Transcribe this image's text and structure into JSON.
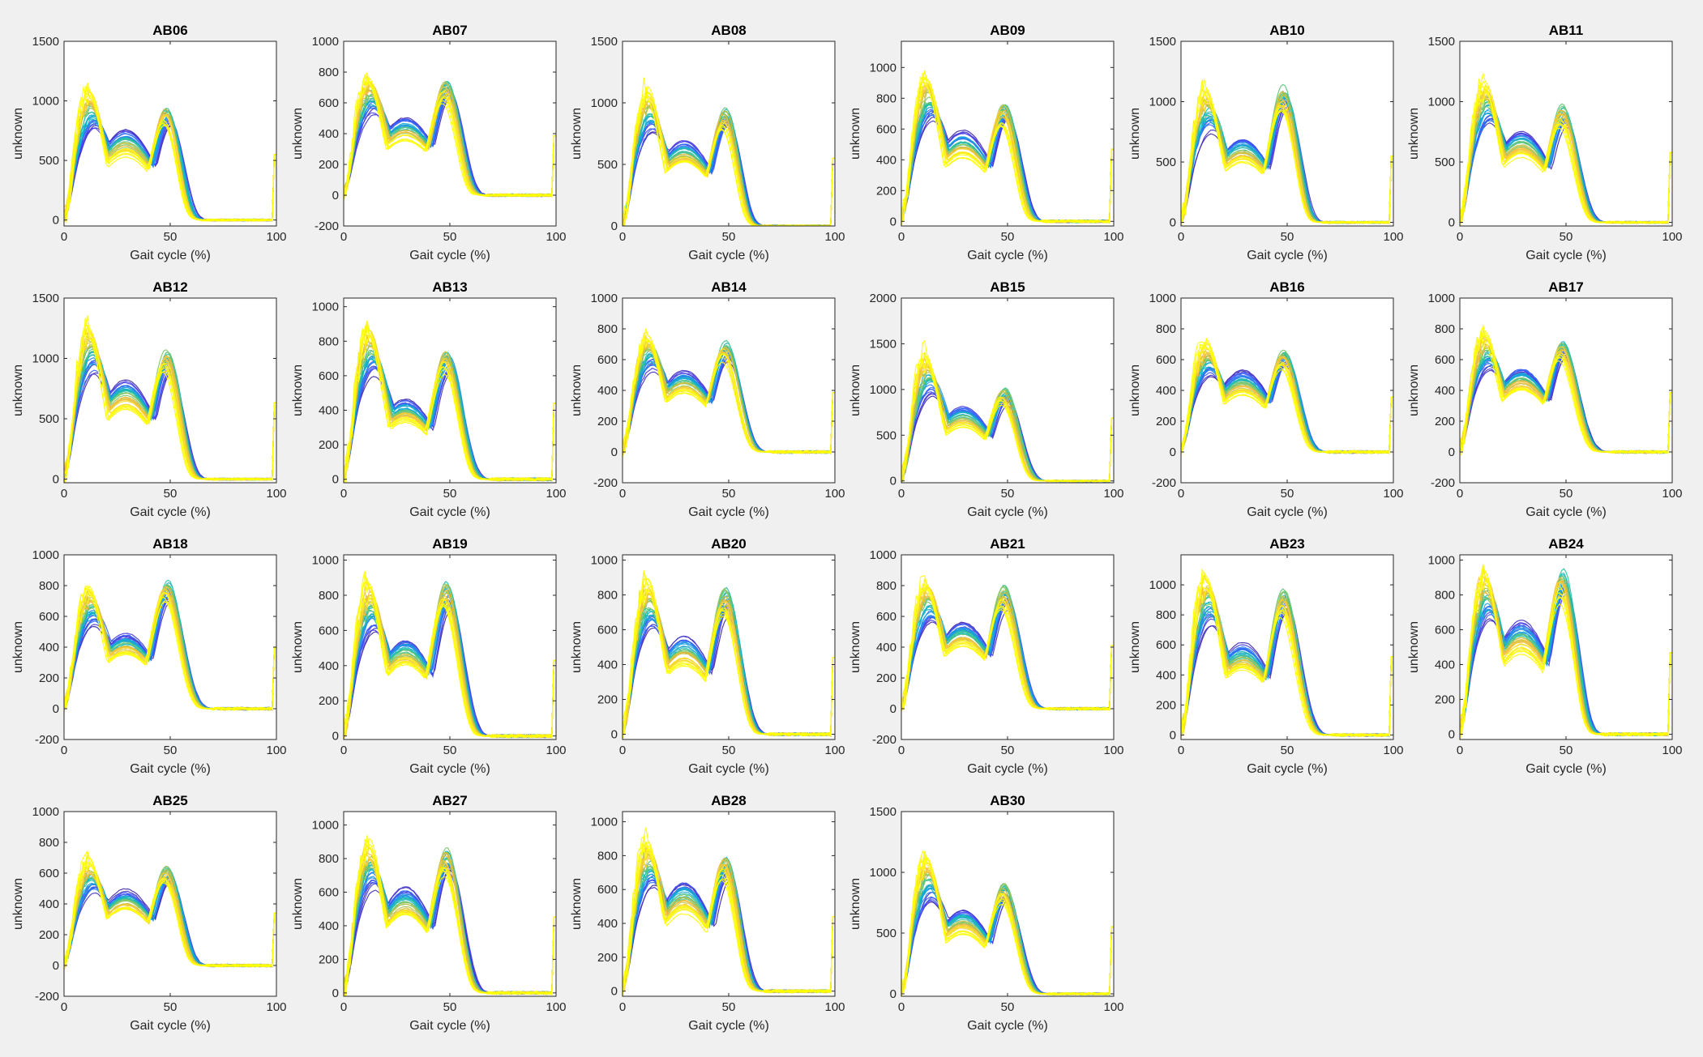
{
  "figure": {
    "background": "#f0f0f0",
    "plot_background": "#ffffff",
    "colormap": [
      "#3e26a8",
      "#4743f5",
      "#2d6ffd",
      "#1e9be0",
      "#0ab2c8",
      "#2bc29f",
      "#7cc76a",
      "#c8c03e",
      "#fbbc3e",
      "#f6d82d",
      "#f9fb14",
      "#ffff00"
    ]
  },
  "chart_data": [
    {
      "type": "line",
      "title": "AB06",
      "xlabel": "Gait cycle (%)",
      "ylabel": "unknown",
      "xlim": [
        0,
        100
      ],
      "ylim": [
        -50,
        1500
      ],
      "xticks": [
        0,
        50,
        100
      ],
      "yticks": [
        0,
        500,
        1000,
        1500
      ],
      "p1": 1000,
      "v": 650,
      "p2": 900,
      "toe_off": 57
    },
    {
      "type": "line",
      "title": "AB07",
      "xlabel": "Gait cycle (%)",
      "ylabel": "unknown",
      "xlim": [
        0,
        100
      ],
      "ylim": [
        -200,
        1000
      ],
      "xticks": [
        0,
        50,
        100
      ],
      "yticks": [
        -200,
        0,
        200,
        400,
        600,
        800,
        1000
      ],
      "p1": 700,
      "v": 430,
      "p2": 700,
      "toe_off": 58
    },
    {
      "type": "line",
      "title": "AB08",
      "xlabel": "Gait cycle (%)",
      "ylabel": "unknown",
      "xlim": [
        0,
        100
      ],
      "ylim": [
        0,
        1500
      ],
      "xticks": [
        0,
        50,
        100
      ],
      "yticks": [
        0,
        500,
        1000,
        1500
      ],
      "p1": 1000,
      "v": 600,
      "p2": 900,
      "toe_off": 57
    },
    {
      "type": "line",
      "title": "AB09",
      "xlabel": "Gait cycle (%)",
      "ylabel": "unknown",
      "xlim": [
        0,
        100
      ],
      "ylim": [
        -30,
        1170
      ],
      "xticks": [
        0,
        50,
        100
      ],
      "yticks": [
        0,
        200,
        400,
        600,
        800,
        1000
      ],
      "p1": 850,
      "v": 500,
      "p2": 720,
      "toe_off": 58
    },
    {
      "type": "line",
      "title": "AB10",
      "xlabel": "Gait cycle (%)",
      "ylabel": "unknown",
      "xlim": [
        0,
        100
      ],
      "ylim": [
        -30,
        1500
      ],
      "xticks": [
        0,
        50,
        100
      ],
      "yticks": [
        0,
        500,
        1000,
        1500
      ],
      "p1": 1000,
      "v": 600,
      "p2": 1050,
      "toe_off": 58
    },
    {
      "type": "line",
      "title": "AB11",
      "xlabel": "Gait cycle (%)",
      "ylabel": "unknown",
      "xlim": [
        0,
        100
      ],
      "ylim": [
        -30,
        1500
      ],
      "xticks": [
        0,
        50,
        100
      ],
      "yticks": [
        0,
        500,
        1000,
        1500
      ],
      "p1": 1050,
      "v": 650,
      "p2": 900,
      "toe_off": 60
    },
    {
      "type": "line",
      "title": "AB12",
      "xlabel": "Gait cycle (%)",
      "ylabel": "unknown",
      "xlim": [
        0,
        100
      ],
      "ylim": [
        -30,
        1500
      ],
      "xticks": [
        0,
        50,
        100
      ],
      "yticks": [
        0,
        500,
        1000,
        1500
      ],
      "p1": 1150,
      "v": 700,
      "p2": 1000,
      "toe_off": 58
    },
    {
      "type": "line",
      "title": "AB13",
      "xlabel": "Gait cycle (%)",
      "ylabel": "unknown",
      "xlim": [
        0,
        100
      ],
      "ylim": [
        -20,
        1050
      ],
      "xticks": [
        0,
        50,
        100
      ],
      "yticks": [
        0,
        200,
        400,
        600,
        800,
        1000
      ],
      "p1": 800,
      "v": 400,
      "p2": 700,
      "toe_off": 60
    },
    {
      "type": "line",
      "title": "AB14",
      "xlabel": "Gait cycle (%)",
      "ylabel": "unknown",
      "xlim": [
        0,
        100
      ],
      "ylim": [
        -200,
        1000
      ],
      "xticks": [
        0,
        50,
        100
      ],
      "yticks": [
        -200,
        0,
        200,
        400,
        600,
        800,
        1000
      ],
      "p1": 700,
      "v": 450,
      "p2": 680,
      "toe_off": 60
    },
    {
      "type": "line",
      "title": "AB15",
      "xlabel": "Gait cycle (%)",
      "ylabel": "unknown",
      "xlim": [
        0,
        100
      ],
      "ylim": [
        -20,
        2000
      ],
      "xticks": [
        0,
        50,
        100
      ],
      "yticks": [
        0,
        500,
        1000,
        1500,
        2000
      ],
      "p1": 1250,
      "v": 700,
      "p2": 950,
      "toe_off": 60
    },
    {
      "type": "line",
      "title": "AB16",
      "xlabel": "Gait cycle (%)",
      "ylabel": "unknown",
      "xlim": [
        0,
        100
      ],
      "ylim": [
        -200,
        1000
      ],
      "xticks": [
        0,
        50,
        100
      ],
      "yticks": [
        -200,
        0,
        200,
        400,
        600,
        800,
        1000
      ],
      "p1": 650,
      "v": 450,
      "p2": 620,
      "toe_off": 60
    },
    {
      "type": "line",
      "title": "AB17",
      "xlabel": "Gait cycle (%)",
      "ylabel": "unknown",
      "xlim": [
        0,
        100
      ],
      "ylim": [
        -200,
        1000
      ],
      "xticks": [
        0,
        50,
        100
      ],
      "yticks": [
        -200,
        0,
        200,
        400,
        600,
        800,
        1000
      ],
      "p1": 700,
      "v": 470,
      "p2": 680,
      "toe_off": 62
    },
    {
      "type": "line",
      "title": "AB18",
      "xlabel": "Gait cycle (%)",
      "ylabel": "unknown",
      "xlim": [
        0,
        100
      ],
      "ylim": [
        -200,
        1000
      ],
      "xticks": [
        0,
        50,
        100
      ],
      "yticks": [
        -200,
        0,
        200,
        400,
        600,
        800,
        1000
      ],
      "p1": 720,
      "v": 420,
      "p2": 780,
      "toe_off": 62
    },
    {
      "type": "line",
      "title": "AB19",
      "xlabel": "Gait cycle (%)",
      "ylabel": "unknown",
      "xlim": [
        0,
        100
      ],
      "ylim": [
        -20,
        1030
      ],
      "xticks": [
        0,
        50,
        100
      ],
      "yticks": [
        0,
        200,
        400,
        600,
        800,
        1000
      ],
      "p1": 780,
      "v": 480,
      "p2": 820,
      "toe_off": 60
    },
    {
      "type": "line",
      "title": "AB20",
      "xlabel": "Gait cycle (%)",
      "ylabel": "unknown",
      "xlim": [
        0,
        100
      ],
      "ylim": [
        -30,
        1030
      ],
      "xticks": [
        0,
        50,
        100
      ],
      "yticks": [
        0,
        200,
        400,
        600,
        800,
        1000
      ],
      "p1": 800,
      "v": 480,
      "p2": 780,
      "toe_off": 60
    },
    {
      "type": "line",
      "title": "AB21",
      "xlabel": "Gait cycle (%)",
      "ylabel": "unknown",
      "xlim": [
        0,
        100
      ],
      "ylim": [
        -200,
        1000
      ],
      "xticks": [
        0,
        50,
        100
      ],
      "yticks": [
        -200,
        0,
        200,
        400,
        600,
        800,
        1000
      ],
      "p1": 750,
      "v": 480,
      "p2": 740,
      "toe_off": 60
    },
    {
      "type": "line",
      "title": "AB23",
      "xlabel": "Gait cycle (%)",
      "ylabel": "unknown",
      "xlim": [
        0,
        100
      ],
      "ylim": [
        -30,
        1200
      ],
      "xticks": [
        0,
        50,
        100
      ],
      "yticks": [
        0,
        200,
        400,
        600,
        800,
        1000
      ],
      "p1": 950,
      "v": 520,
      "p2": 900,
      "toe_off": 62
    },
    {
      "type": "line",
      "title": "AB24",
      "xlabel": "Gait cycle (%)",
      "ylabel": "unknown",
      "xlim": [
        0,
        100
      ],
      "ylim": [
        -30,
        1030
      ],
      "xticks": [
        0,
        50,
        100
      ],
      "yticks": [
        0,
        200,
        400,
        600,
        800,
        1000
      ],
      "p1": 850,
      "v": 560,
      "p2": 880,
      "toe_off": 58
    },
    {
      "type": "line",
      "title": "AB25",
      "xlabel": "Gait cycle (%)",
      "ylabel": "unknown",
      "xlim": [
        0,
        100
      ],
      "ylim": [
        -200,
        1000
      ],
      "xticks": [
        0,
        50,
        100
      ],
      "yticks": [
        -200,
        0,
        200,
        400,
        600,
        800,
        1000
      ],
      "p1": 620,
      "v": 420,
      "p2": 600,
      "toe_off": 58
    },
    {
      "type": "line",
      "title": "AB27",
      "xlabel": "Gait cycle (%)",
      "ylabel": "unknown",
      "xlim": [
        0,
        100
      ],
      "ylim": [
        -20,
        1080
      ],
      "xticks": [
        0,
        50,
        100
      ],
      "yticks": [
        0,
        200,
        400,
        600,
        800,
        1000
      ],
      "p1": 820,
      "v": 540,
      "p2": 800,
      "toe_off": 60
    },
    {
      "type": "line",
      "title": "AB28",
      "xlabel": "Gait cycle (%)",
      "ylabel": "unknown",
      "xlim": [
        0,
        100
      ],
      "ylim": [
        -30,
        1060
      ],
      "xticks": [
        0,
        50,
        100
      ],
      "yticks": [
        0,
        200,
        400,
        600,
        800,
        1000
      ],
      "p1": 800,
      "v": 560,
      "p2": 760,
      "toe_off": 58
    },
    {
      "type": "line",
      "title": "AB30",
      "xlabel": "Gait cycle (%)",
      "ylabel": "unknown",
      "xlim": [
        0,
        100
      ],
      "ylim": [
        -20,
        1500
      ],
      "xticks": [
        0,
        50,
        100
      ],
      "yticks": [
        0,
        500,
        1000,
        1500
      ],
      "p1": 1000,
      "v": 600,
      "p2": 850,
      "toe_off": 60
    }
  ]
}
